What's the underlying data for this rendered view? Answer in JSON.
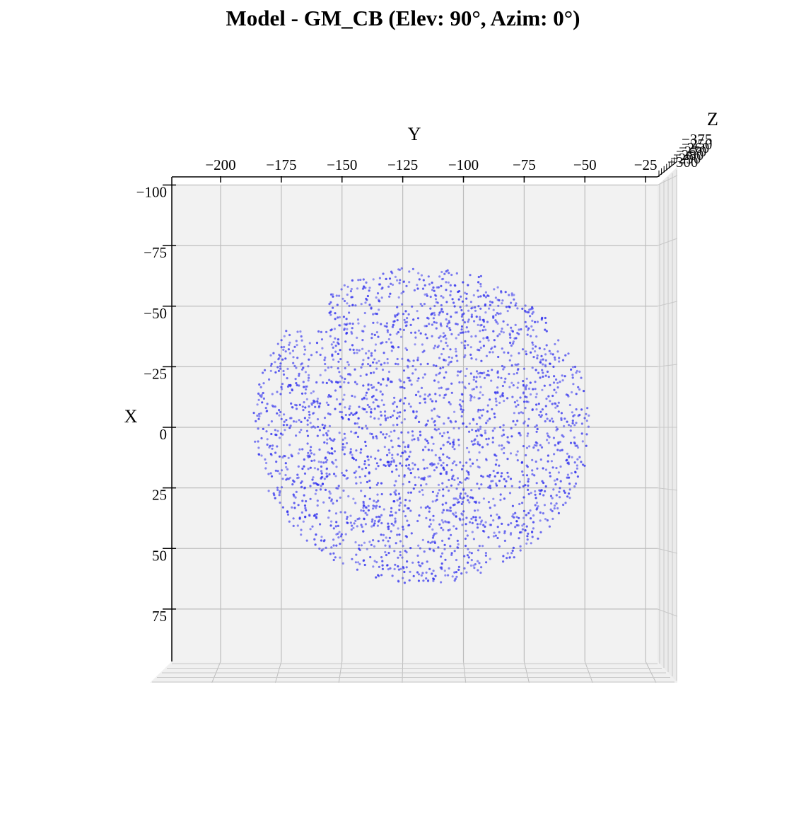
{
  "chart_data": {
    "type": "scatter",
    "projection": "3d",
    "title": "Model - GM_CB (Elev: 90°, Azim: 0°)",
    "xlabel": "Y",
    "ylabel": "X",
    "zlabel": "Z",
    "y_axis": {
      "ticks": [
        -200,
        -175,
        -150,
        -125,
        -100,
        -75,
        -50,
        -25
      ],
      "range": [
        -220,
        -20
      ]
    },
    "x_axis": {
      "ticks": [
        -100,
        -75,
        -50,
        -25,
        0,
        25,
        50,
        75
      ],
      "range": [
        -100,
        96
      ]
    },
    "z_axis": {
      "ticks": [
        -375
      ]
    },
    "grid": true,
    "point_color": "#2a2aee",
    "point_count": 2600,
    "point_cloud": {
      "shape": "ellipsoid",
      "center_y": -117,
      "center_x": -1,
      "extent_y": [
        -197,
        -58
      ],
      "extent_x": [
        -69,
        62
      ]
    }
  }
}
